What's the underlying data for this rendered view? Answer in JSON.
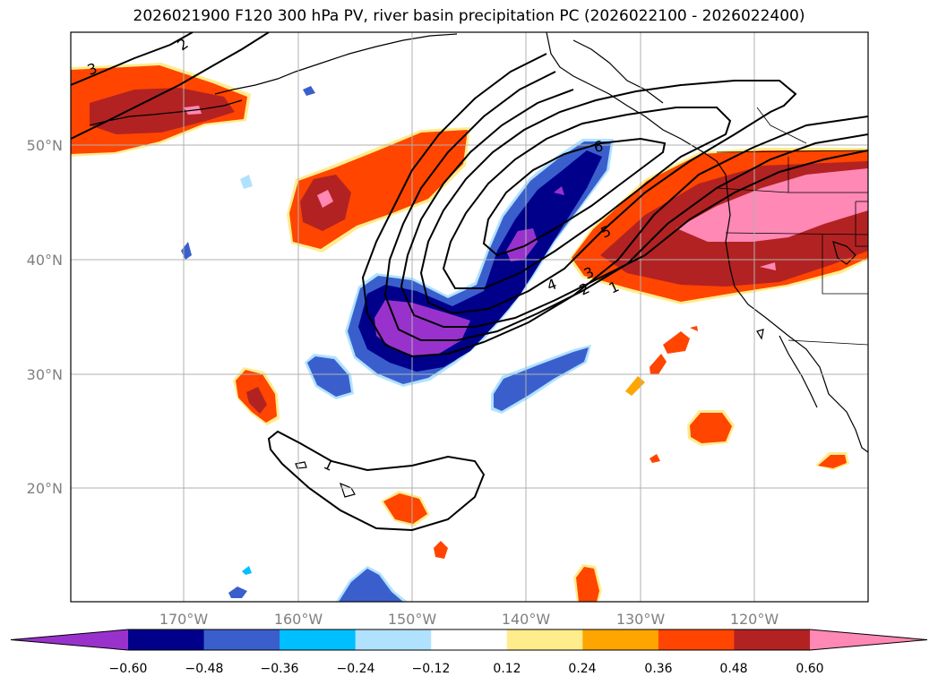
{
  "title": "2026021900 F120 300 hPa PV, river basin precipitation PC (2026022100 - 2026022400)",
  "map": {
    "lat_labels": [
      "50°N",
      "40°N",
      "30°N",
      "20°N"
    ],
    "lon_labels": [
      "170°W",
      "160°W",
      "150°W",
      "140°W",
      "130°W",
      "120°W"
    ],
    "pv_contour_labels": [
      "1",
      "2",
      "3",
      "4",
      "5",
      "6",
      "1",
      "2",
      "3"
    ]
  },
  "colorbar": {
    "colors": [
      "#9932cc",
      "#00008b",
      "#3a5fcd",
      "#00bfff",
      "#b0e2ff",
      "#ffffff",
      "#ffec8b",
      "#ffa500",
      "#ff4500",
      "#b22222",
      "#ff88b4"
    ],
    "ticks": [
      "−0.60",
      "−0.48",
      "−0.36",
      "−0.24",
      "−0.12",
      "0.12",
      "0.24",
      "0.36",
      "0.48",
      "0.60"
    ]
  },
  "chart_data": {
    "type": "map",
    "title": "2026021900 F120 300 hPa PV, river basin precipitation PC (2026022100 - 2026022400)",
    "variable_contours": "300 hPa PV (PVU)",
    "contour_levels": [
      1,
      2,
      3,
      4,
      5,
      6
    ],
    "shaded_variable": "river basin precipitation PC",
    "color_levels": [
      -0.6,
      -0.48,
      -0.36,
      -0.24,
      -0.12,
      0.12,
      0.24,
      0.36,
      0.48,
      0.6
    ],
    "lon_range": [
      -180,
      -110
    ],
    "lat_range": [
      10,
      60
    ]
  }
}
